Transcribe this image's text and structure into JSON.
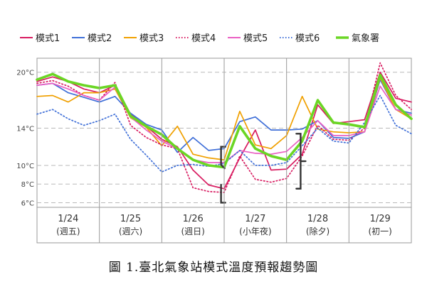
{
  "caption": "圖 1.臺北氣象站模式溫度預報趨勢圖",
  "chart_data": {
    "type": "line",
    "title": "",
    "xlabel": "",
    "ylabel": "",
    "x_range": [
      1,
      25
    ],
    "ylim": [
      5.5,
      21.5
    ],
    "y_ticks": [
      {
        "value": 20,
        "label": "20°C"
      },
      {
        "value": 14,
        "label": "14°C"
      },
      {
        "value": 10,
        "label": "10°C"
      },
      {
        "value": 8,
        "label": "8°C"
      },
      {
        "value": 6,
        "label": "6°C"
      }
    ],
    "days": [
      {
        "date": "1/24",
        "weekday": "(週五)"
      },
      {
        "date": "1/25",
        "weekday": "(週六)"
      },
      {
        "date": "1/26",
        "weekday": "(週日)"
      },
      {
        "date": "1/27",
        "weekday": "(小年夜)"
      },
      {
        "date": "1/28",
        "weekday": "(除夕)"
      },
      {
        "date": "1/29",
        "weekday": "(初一)"
      }
    ],
    "legend_position": "top",
    "grid": true,
    "series": [
      {
        "name": "模式1",
        "color": "#d81b60",
        "dash": "solid",
        "x": [
          1,
          2,
          3,
          4,
          5,
          6,
          7,
          8,
          9,
          10,
          11,
          12,
          13,
          14,
          15,
          16,
          17,
          18,
          19,
          20,
          21,
          22,
          23,
          24,
          25
        ],
        "values": [
          19.0,
          19.5,
          19.0,
          18.2,
          17.8,
          18.6,
          15.5,
          14.2,
          12.8,
          12.0,
          9.5,
          7.9,
          7.5,
          10.8,
          13.8,
          9.5,
          9.6,
          11.2,
          16.5,
          14.5,
          14.7,
          14.9,
          20.0,
          17.2,
          16.8
        ]
      },
      {
        "name": "模式2",
        "color": "#3f6fd8",
        "dash": "solid",
        "x": [
          1,
          2,
          3,
          4,
          5,
          6,
          7,
          8,
          9,
          10,
          11,
          12,
          13,
          14,
          15,
          16,
          17,
          18,
          19,
          20,
          21,
          22,
          23,
          24,
          25
        ],
        "values": [
          18.6,
          18.8,
          17.8,
          17.3,
          16.8,
          17.4,
          15.6,
          14.4,
          13.8,
          11.4,
          13.0,
          11.6,
          11.8,
          14.7,
          15.2,
          13.8,
          13.8,
          13.9,
          14.8,
          13.0,
          12.9,
          13.6,
          19.2,
          16.0,
          15.6
        ]
      },
      {
        "name": "模式3",
        "color": "#f0a000",
        "dash": "solid",
        "x": [
          1,
          2,
          3,
          4,
          5,
          6,
          7,
          8,
          9,
          10,
          11,
          12,
          13,
          14,
          15,
          16,
          17,
          18,
          19,
          20,
          21,
          22,
          23,
          24,
          25
        ],
        "values": [
          17.4,
          17.5,
          16.8,
          17.8,
          17.8,
          18.2,
          15.1,
          14.1,
          12.1,
          14.2,
          11.2,
          10.8,
          10.6,
          15.8,
          12.2,
          11.8,
          13.2,
          17.4,
          13.9,
          13.6,
          13.5,
          13.6,
          19.4,
          16.0,
          15.0
        ]
      },
      {
        "name": "模式4",
        "color": "#d81b60",
        "dash": "dotted",
        "x": [
          1,
          2,
          3,
          4,
          5,
          6,
          7,
          8,
          9,
          10,
          11,
          12,
          13,
          14,
          15,
          16,
          17,
          18,
          19,
          20,
          21,
          22,
          23,
          24,
          25
        ],
        "values": [
          18.8,
          19.1,
          18.5,
          17.5,
          17.0,
          18.9,
          14.3,
          13.0,
          12.2,
          11.8,
          7.6,
          7.2,
          7.1,
          11.0,
          8.5,
          8.2,
          8.6,
          11.0,
          14.3,
          12.8,
          12.7,
          14.0,
          21.0,
          17.5,
          16.0
        ]
      },
      {
        "name": "模式5",
        "color": "#ea5fc3",
        "dash": "solid",
        "x": [
          1,
          2,
          3,
          4,
          5,
          6,
          7,
          8,
          9,
          10,
          11,
          12,
          13,
          14,
          15,
          16,
          17,
          18,
          19,
          20,
          21,
          22,
          23,
          24,
          25
        ],
        "values": [
          18.6,
          18.8,
          18.2,
          17.5,
          17.0,
          18.4,
          15.2,
          13.8,
          12.6,
          11.8,
          10.6,
          10.3,
          10.3,
          11.6,
          11.3,
          11.2,
          11.5,
          13.0,
          14.8,
          13.2,
          13.2,
          13.6,
          18.5,
          16.0,
          15.4
        ]
      },
      {
        "name": "模式6",
        "color": "#3f6fd8",
        "dash": "dotted",
        "x": [
          1,
          2,
          3,
          4,
          5,
          6,
          7,
          8,
          9,
          10,
          11,
          12,
          13,
          14,
          15,
          16,
          17,
          18,
          19,
          20,
          21,
          22,
          23,
          24,
          25
        ],
        "values": [
          15.5,
          16.0,
          15.0,
          14.3,
          14.8,
          15.5,
          12.8,
          11.1,
          9.3,
          10.0,
          10.1,
          9.9,
          10.2,
          11.6,
          10.0,
          10.0,
          10.3,
          12.1,
          14.0,
          12.6,
          12.4,
          14.6,
          17.5,
          14.3,
          13.4
        ]
      },
      {
        "name": "氣象署",
        "color": "#6ad624",
        "dash": "solid",
        "x": [
          1,
          2,
          3,
          4,
          5,
          6,
          7,
          8,
          9,
          10,
          11,
          12,
          13,
          14,
          15,
          16,
          17,
          18,
          19,
          20,
          21,
          22,
          23,
          24,
          25
        ],
        "values": [
          19.2,
          19.8,
          19.0,
          18.6,
          18.3,
          18.6,
          15.3,
          14.2,
          13.3,
          11.8,
          10.6,
          10.0,
          9.8,
          14.2,
          11.8,
          11.0,
          10.6,
          12.6,
          17.0,
          14.6,
          14.4,
          14.1,
          19.7,
          16.5,
          15.0
        ]
      }
    ],
    "annotations": [
      {
        "type": "bracket",
        "x": 12.8,
        "y_top": 12.0,
        "y_bottom": 6.0,
        "opens": "right",
        "color": "#333333"
      },
      {
        "type": "bracket",
        "x": 17.9,
        "y_top": 13.4,
        "y_bottom": 7.5,
        "opens": "left",
        "color": "#333333"
      }
    ]
  }
}
